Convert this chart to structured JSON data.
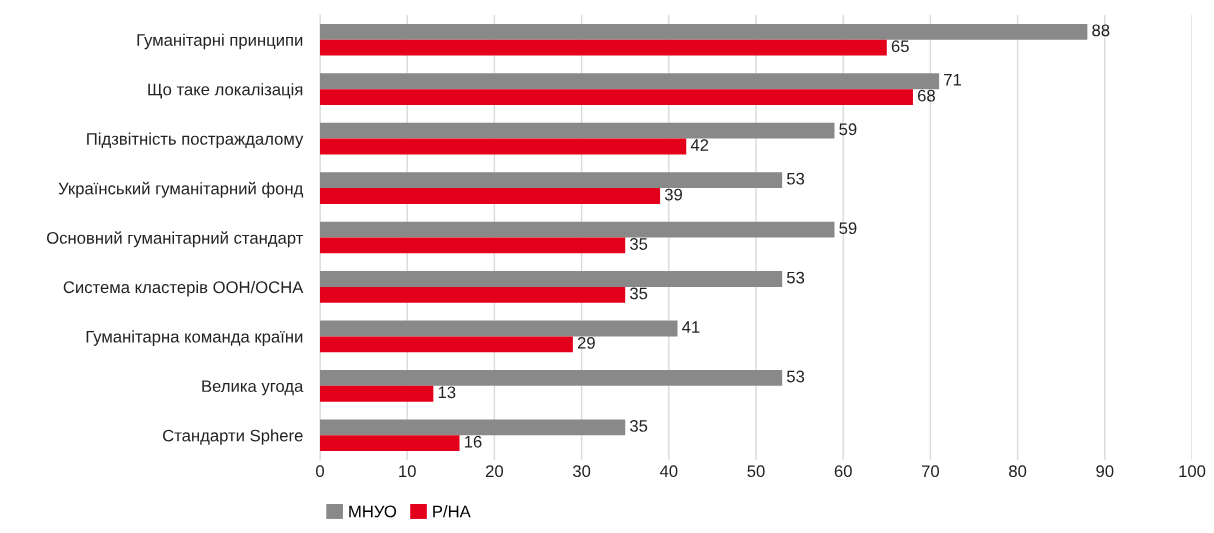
{
  "chart_data": {
    "type": "bar",
    "orientation": "horizontal",
    "categories": [
      "Гуманітарні принципи",
      "Що таке локалізація",
      "Підзвітність постраждалому",
      "Український гуманітарний фонд",
      "Основний гуманітарний стандарт",
      "Система кластерів ООН/OCHA",
      "Гуманітарна команда країни",
      "Велика угода",
      "Стандарти Sphere"
    ],
    "series": [
      {
        "name": "МНУО",
        "color": "#898989",
        "values": [
          88,
          71,
          59,
          53,
          59,
          53,
          41,
          53,
          35
        ]
      },
      {
        "name": "Р/НА",
        "color": "#e3001b",
        "values": [
          65,
          68,
          42,
          39,
          35,
          35,
          29,
          13,
          16
        ]
      }
    ],
    "xlim": [
      0,
      100
    ],
    "xticks": [
      0,
      10,
      20,
      30,
      40,
      50,
      60,
      70,
      80,
      90,
      100
    ],
    "grid": "x",
    "legend": "bottom left",
    "data_labels": true
  }
}
